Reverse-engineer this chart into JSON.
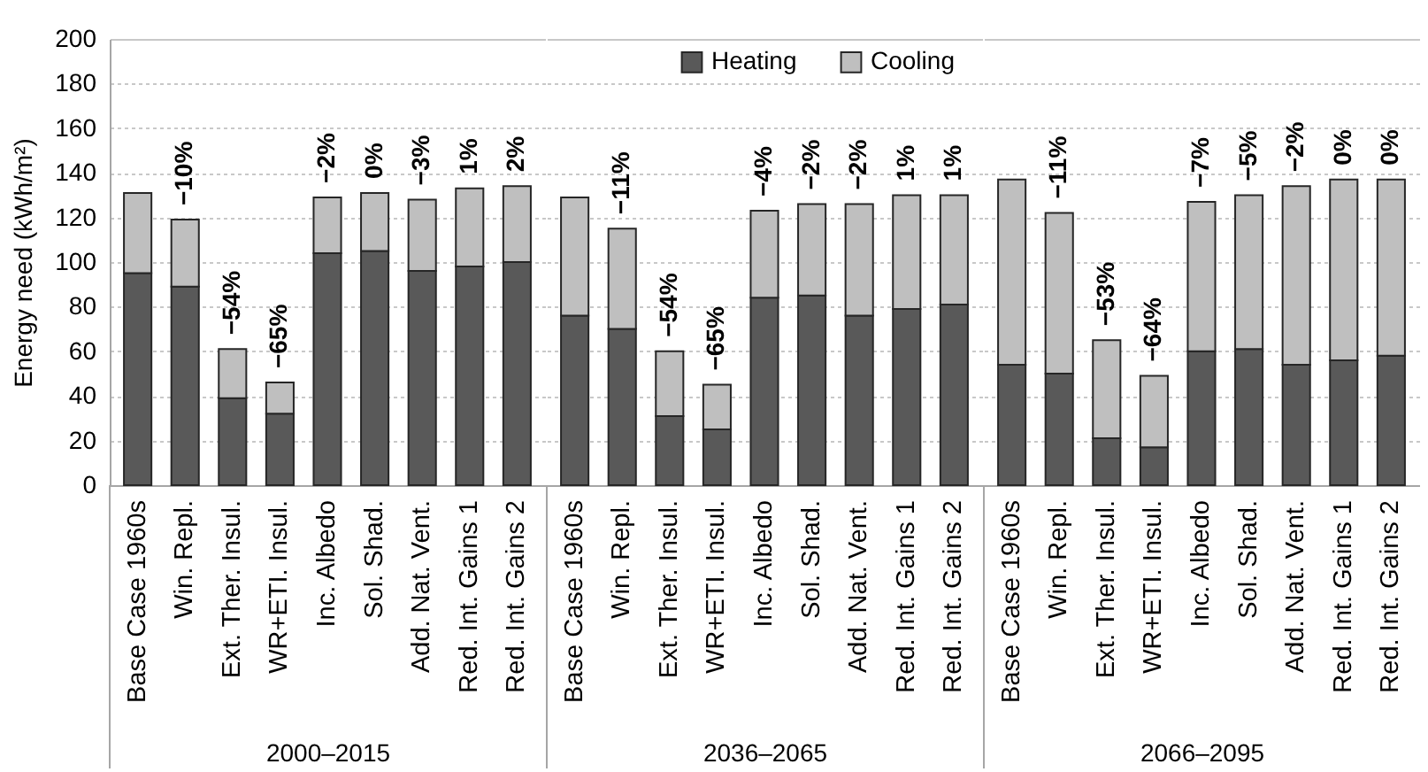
{
  "chart_data": [
    {
      "type": "bar",
      "stacked": true,
      "categories": [
        "Base Case 1960s",
        "Win. Repl.",
        "Ext. Ther. Insul.",
        "WR+ETI. Insul.",
        "Inc. Albedo",
        "Sol. Shad.",
        "Add. Nat. Vent.",
        "Red. Int. Gains 1",
        "Red. Int. Gains 2"
      ],
      "series": [
        {
          "color": "#595959",
          "values": [
            95,
            89,
            39,
            32,
            104,
            105,
            96,
            98,
            100
          ]
        },
        {
          "color": "#bfbfbf",
          "values": [
            36,
            30,
            22,
            14,
            25,
            26,
            32,
            35,
            34
          ]
        }
      ],
      "xlabel": "2000–2015",
      "ylabel": "Energy need (kWh/m²)",
      "ylim": [
        0,
        200
      ],
      "yticks": [
        0,
        20,
        40,
        60,
        80,
        100,
        120,
        140,
        160,
        180,
        200
      ],
      "grid": "y",
      "annotations": [
        {
          "text": "−10%",
          "x": "Win. Repl.",
          "y": 119
        },
        {
          "text": "−54%",
          "x": "Ext. Ther. Insul.",
          "y": 61
        },
        {
          "text": "−65%",
          "x": "WR+ETI. Insul.",
          "y": 46
        },
        {
          "text": "−2%",
          "x": "Inc. Albedo",
          "y": 129
        },
        {
          "text": "0%",
          "x": "Sol. Shad.",
          "y": 131
        },
        {
          "text": "−3%",
          "x": "Add. Nat. Vent.",
          "y": 128
        },
        {
          "text": "1%",
          "x": "Red. Int. Gains 1",
          "y": 133
        },
        {
          "text": "2%",
          "x": "Red. Int. Gains 2",
          "y": 134
        }
      ]
    },
    {
      "type": "bar",
      "stacked": true,
      "categories": [
        "Base Case 1960s",
        "Win. Repl.",
        "Ext. Ther. Insul.",
        "WR+ETI. Insul.",
        "Inc. Albedo",
        "Sol. Shad.",
        "Add. Nat. Vent.",
        "Red. Int. Gains 1",
        "Red. Int. Gains 2"
      ],
      "series": [
        {
          "name": "Heating",
          "color": "#595959",
          "values": [
            76,
            70,
            31,
            25,
            84,
            85,
            76,
            79,
            81
          ]
        },
        {
          "name": "Cooling",
          "color": "#bfbfbf",
          "values": [
            53,
            45,
            29,
            20,
            39,
            41,
            50,
            51,
            49
          ]
        }
      ],
      "xlabel": "2036–2065",
      "ylim": [
        0,
        200
      ],
      "yticks": [
        0,
        20,
        40,
        60,
        80,
        100,
        120,
        140,
        160,
        180,
        200
      ],
      "grid": "y",
      "legend": "top",
      "tick_labels": "x",
      "annotations": [
        {
          "text": "−11%",
          "x": "Win. Repl.",
          "y": 115
        },
        {
          "text": "−54%",
          "x": "Ext. Ther. Insul.",
          "y": 60
        },
        {
          "text": "−65%",
          "x": "WR+ETI. Insul.",
          "y": 45
        },
        {
          "text": "−4%",
          "x": "Inc. Albedo",
          "y": 123
        },
        {
          "text": "−2%",
          "x": "Sol. Shad.",
          "y": 126
        },
        {
          "text": "−2%",
          "x": "Add. Nat. Vent.",
          "y": 126
        },
        {
          "text": "1%",
          "x": "Red. Int. Gains 1",
          "y": 130
        },
        {
          "text": "1%",
          "x": "Red. Int. Gains 2",
          "y": 130
        }
      ]
    },
    {
      "type": "bar",
      "stacked": true,
      "categories": [
        "Base Case 1960s",
        "Win. Repl.",
        "Ext. Ther. Insul.",
        "WR+ETI. Insul.",
        "Inc. Albedo",
        "Sol. Shad.",
        "Add. Nat. Vent.",
        "Red. Int. Gains 1",
        "Red. Int. Gains 2"
      ],
      "series": [
        {
          "color": "#595959",
          "values": [
            54,
            50,
            21,
            17,
            60,
            61,
            54,
            56,
            58
          ]
        },
        {
          "color": "#bfbfbf",
          "values": [
            83,
            72,
            44,
            32,
            67,
            69,
            80,
            81,
            79
          ]
        }
      ],
      "xlabel": "2066–2095",
      "ylim": [
        0,
        200
      ],
      "yticks": [
        0,
        20,
        40,
        60,
        80,
        100,
        120,
        140,
        160,
        180,
        200
      ],
      "grid": "y",
      "tick_labels": "x",
      "annotations": [
        {
          "text": "−11%",
          "x": "Win. Repl.",
          "y": 122
        },
        {
          "text": "−53%",
          "x": "Ext. Ther. Insul.",
          "y": 65
        },
        {
          "text": "−64%",
          "x": "WR+ETI. Insul.",
          "y": 49
        },
        {
          "text": "−7%",
          "x": "Inc. Albedo",
          "y": 127
        },
        {
          "text": "−5%",
          "x": "Sol. Shad.",
          "y": 130
        },
        {
          "text": "−2%",
          "x": "Add. Nat. Vent.",
          "y": 134
        },
        {
          "text": "0%",
          "x": "Red. Int. Gains 1",
          "y": 137
        },
        {
          "text": "0%",
          "x": "Red. Int. Gains 2",
          "y": 137
        }
      ]
    }
  ]
}
